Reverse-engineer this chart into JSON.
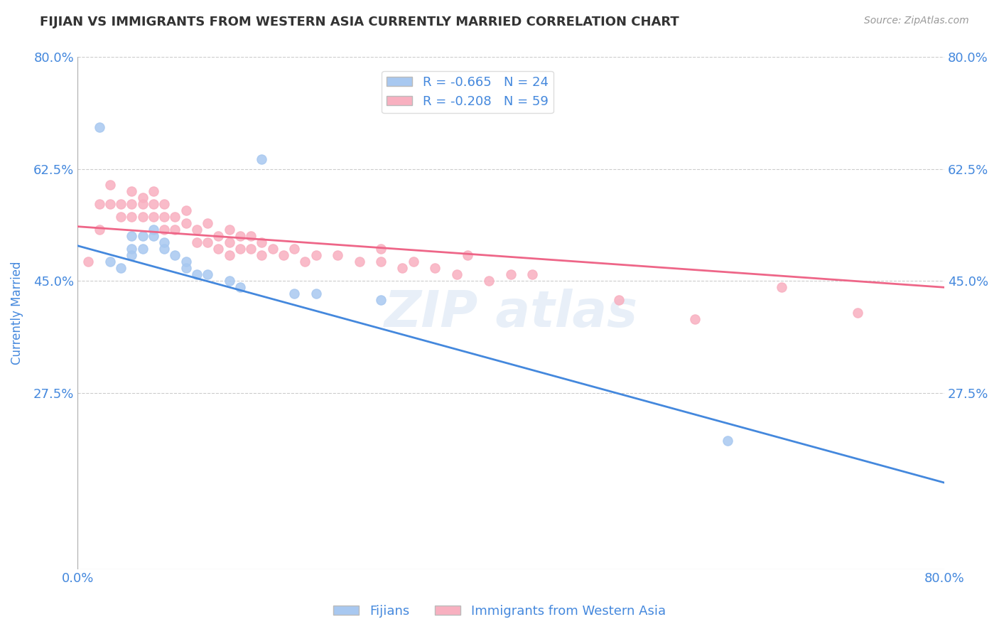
{
  "title": "FIJIAN VS IMMIGRANTS FROM WESTERN ASIA CURRENTLY MARRIED CORRELATION CHART",
  "source_text": "Source: ZipAtlas.com",
  "ylabel_text": "Currently Married",
  "xlim": [
    0.0,
    0.8
  ],
  "ylim": [
    0.0,
    0.8
  ],
  "ytick_values": [
    0.275,
    0.45,
    0.625,
    0.8
  ],
  "ytick_labels": [
    "27.5%",
    "45.0%",
    "62.5%",
    "80.0%"
  ],
  "grid_color": "#cccccc",
  "background_color": "#ffffff",
  "fijian_color": "#a8c8f0",
  "immigrant_color": "#f8b0c0",
  "fijian_line_color": "#4488dd",
  "immigrant_line_color": "#ee6688",
  "legend_r1": "R = -0.665",
  "legend_n1": "N = 24",
  "legend_r2": "R = -0.208",
  "legend_n2": "N = 59",
  "legend_label1": "Fijians",
  "legend_label2": "Immigrants from Western Asia",
  "title_color": "#333333",
  "axis_color": "#4488dd",
  "fijian_scatter_x": [
    0.02,
    0.03,
    0.04,
    0.05,
    0.05,
    0.05,
    0.06,
    0.06,
    0.07,
    0.07,
    0.08,
    0.08,
    0.09,
    0.1,
    0.1,
    0.11,
    0.12,
    0.14,
    0.15,
    0.17,
    0.2,
    0.22,
    0.28,
    0.6
  ],
  "fijian_scatter_y": [
    0.69,
    0.48,
    0.47,
    0.52,
    0.5,
    0.49,
    0.52,
    0.5,
    0.53,
    0.52,
    0.51,
    0.5,
    0.49,
    0.48,
    0.47,
    0.46,
    0.46,
    0.45,
    0.44,
    0.64,
    0.43,
    0.43,
    0.42,
    0.2
  ],
  "immigrant_scatter_x": [
    0.01,
    0.02,
    0.02,
    0.03,
    0.03,
    0.04,
    0.04,
    0.05,
    0.05,
    0.05,
    0.06,
    0.06,
    0.06,
    0.07,
    0.07,
    0.07,
    0.08,
    0.08,
    0.08,
    0.09,
    0.09,
    0.1,
    0.1,
    0.11,
    0.11,
    0.12,
    0.12,
    0.13,
    0.13,
    0.14,
    0.14,
    0.14,
    0.15,
    0.15,
    0.16,
    0.16,
    0.17,
    0.17,
    0.18,
    0.19,
    0.2,
    0.21,
    0.22,
    0.24,
    0.26,
    0.28,
    0.28,
    0.3,
    0.31,
    0.33,
    0.35,
    0.36,
    0.38,
    0.4,
    0.42,
    0.5,
    0.57,
    0.65,
    0.72
  ],
  "immigrant_scatter_y": [
    0.48,
    0.57,
    0.53,
    0.6,
    0.57,
    0.57,
    0.55,
    0.59,
    0.57,
    0.55,
    0.58,
    0.57,
    0.55,
    0.59,
    0.57,
    0.55,
    0.57,
    0.55,
    0.53,
    0.55,
    0.53,
    0.56,
    0.54,
    0.53,
    0.51,
    0.54,
    0.51,
    0.52,
    0.5,
    0.53,
    0.51,
    0.49,
    0.52,
    0.5,
    0.52,
    0.5,
    0.51,
    0.49,
    0.5,
    0.49,
    0.5,
    0.48,
    0.49,
    0.49,
    0.48,
    0.5,
    0.48,
    0.47,
    0.48,
    0.47,
    0.46,
    0.49,
    0.45,
    0.46,
    0.46,
    0.42,
    0.39,
    0.44,
    0.4
  ],
  "fijian_line_x0": 0.0,
  "fijian_line_y0": 0.505,
  "fijian_line_x1": 0.8,
  "fijian_line_y1": 0.135,
  "immigrant_line_x0": 0.0,
  "immigrant_line_y0": 0.535,
  "immigrant_line_x1": 0.8,
  "immigrant_line_y1": 0.44
}
